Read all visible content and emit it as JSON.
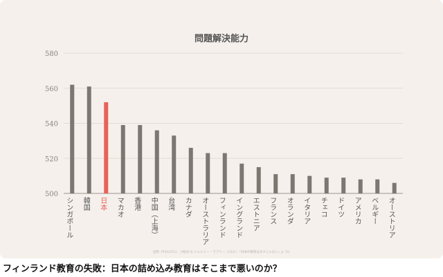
{
  "chart_data": {
    "type": "bar",
    "title": "問題解決能力",
    "categories": [
      "シンガポール",
      "韓国",
      "日本",
      "マカオ",
      "香港",
      "中国（上海）",
      "台湾",
      "カナダ",
      "オーストラリア",
      "フィンランド",
      "イングランド",
      "エストニア",
      "フランス",
      "オランダ",
      "イタリア",
      "チェコ",
      "ドイツ",
      "アメリカ",
      "ベルギー",
      "オーストリア"
    ],
    "values": [
      562,
      561,
      552,
      539,
      539,
      536,
      533,
      526,
      523,
      523,
      517,
      515,
      511,
      511,
      510,
      509,
      509,
      508,
      508,
      506
    ],
    "highlight_index": 2,
    "ylim": [
      500,
      580
    ],
    "yticks": [
      500,
      520,
      540,
      560,
      580
    ],
    "grid": true,
    "colors": {
      "bar": "#7d7671",
      "highlight": "#e8615a",
      "grid": "#e2dcd6",
      "axis": "#9a948f",
      "background": "#f5f0eb"
    },
    "source": "出所: PISA2012、小松光 & ジェルミー・ラプリー（2021）『日本の教育はダメじゃない』p. 33."
  },
  "caption": "フィンランド教育の失敗：日本の詰め込み教育はそこまで悪いのか？"
}
